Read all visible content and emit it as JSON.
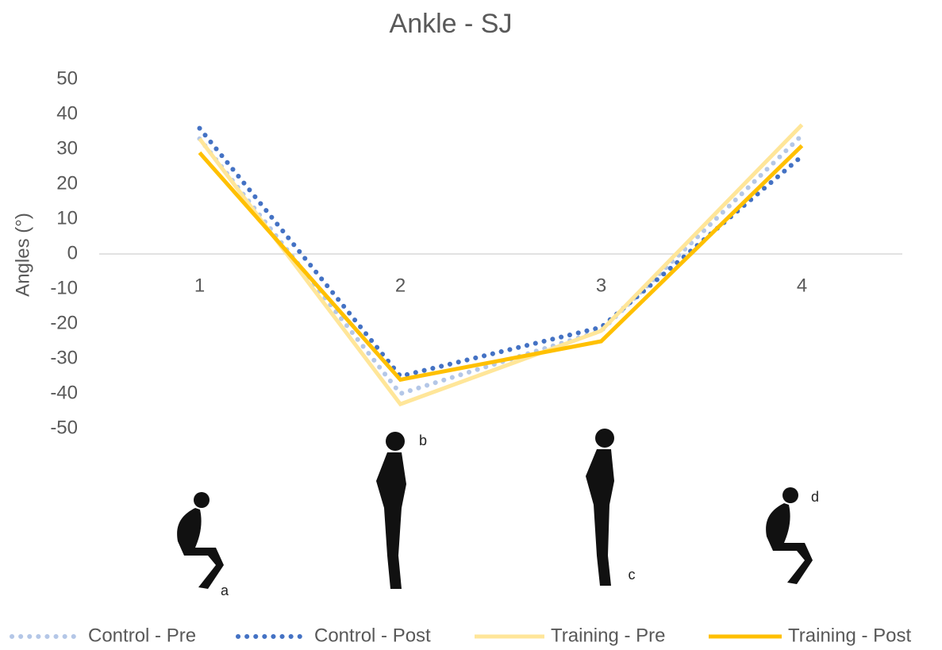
{
  "chart_data": {
    "type": "line",
    "title": "Ankle - SJ",
    "y_label": "Angles (°)",
    "categories": [
      "1",
      "2",
      "3",
      "4"
    ],
    "series": [
      {
        "name": "Control - Pre",
        "color": "#b4c7e7",
        "style": "dotted",
        "values": [
          33,
          -40,
          -22,
          34
        ]
      },
      {
        "name": "Control - Post",
        "color": "#4472c4",
        "style": "dotted",
        "values": [
          36,
          -35,
          -21,
          28
        ]
      },
      {
        "name": "Training - Pre",
        "color": "#ffe699",
        "style": "solid",
        "values": [
          33,
          -43,
          -22,
          37
        ]
      },
      {
        "name": "Training - Post",
        "color": "#ffc000",
        "style": "solid",
        "values": [
          29,
          -36,
          -25,
          31
        ]
      }
    ],
    "ylim": [
      -50,
      50
    ],
    "yticks": [
      -50,
      -40,
      -30,
      -20,
      -10,
      0,
      10,
      20,
      30,
      40,
      50
    ],
    "annotations": [
      "a",
      "b",
      "c",
      "d"
    ],
    "legend": "bottom"
  }
}
